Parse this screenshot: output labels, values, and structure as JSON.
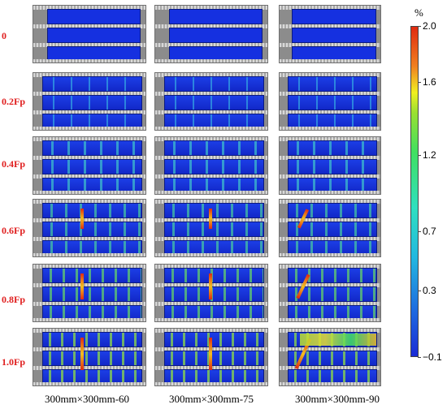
{
  "rows": [
    "0",
    "0.2Fp",
    "0.4Fp",
    "0.6Fp",
    "0.8Fp",
    "1.0Fp"
  ],
  "columns": [
    "300mm×300mm-60",
    "300mm×300mm-75",
    "300mm×300mm-90"
  ],
  "colorbar": {
    "unit": "%",
    "ticks": [
      "2.0",
      "1.6",
      "1.2",
      "0.7",
      "0.3",
      "−0.1"
    ],
    "colors": [
      "#e02a10",
      "#f0f020",
      "#40e060",
      "#2fe0c0",
      "#22b8e0",
      "#1a2bd6"
    ]
  },
  "colors": {
    "row_label": "#e02020",
    "strip_base": "#1530e0",
    "frame": "#8c8c8c"
  }
}
